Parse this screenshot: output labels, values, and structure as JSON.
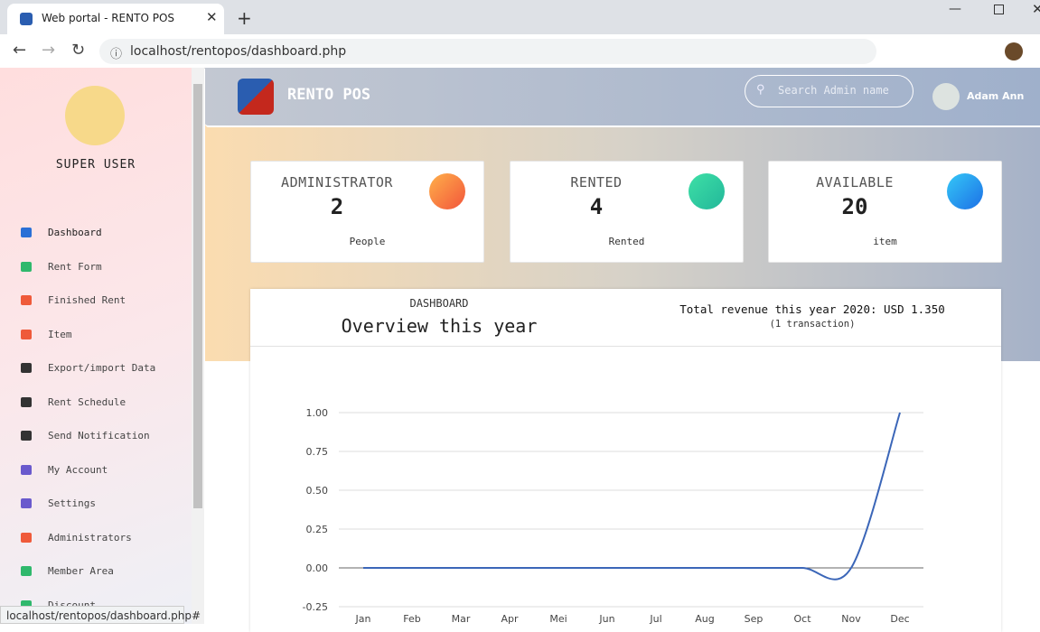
{
  "browser": {
    "tab_title": "Web portal - RENTO POS",
    "url": "localhost/rentopos/dashboard.php",
    "status_url": "localhost/rentopos/dashboard.php#"
  },
  "sidebar": {
    "role": "SUPER USER",
    "menu": [
      "Dashboard",
      "Rent Form",
      "Finished Rent",
      "Item",
      "Export/import Data",
      "Rent Schedule",
      "Send Notification",
      "My Account",
      "Settings",
      "Administrators",
      "Member Area",
      "Discount"
    ]
  },
  "header": {
    "brand": "RENTO POS",
    "search_placeholder": "Search Admin name",
    "user": "Adam Ann"
  },
  "cards": [
    {
      "title": "ADMINISTRATOR",
      "value": "2",
      "unit": "People"
    },
    {
      "title": "RENTED",
      "value": "4",
      "unit": "Rented"
    },
    {
      "title": "AVAILABLE",
      "value": "20",
      "unit": "item"
    }
  ],
  "panel": {
    "subtitle": "DASHBOARD",
    "title": "Overview this year",
    "revenue": "Total revenue this year 2020: USD 1.350",
    "note": "(1 transaction)"
  },
  "chart_data": {
    "type": "line",
    "categories": [
      "Jan",
      "Feb",
      "Mar",
      "Apr",
      "Mei",
      "Jun",
      "Jul",
      "Aug",
      "Sep",
      "Oct",
      "Nov",
      "Dec"
    ],
    "values": [
      0,
      0,
      0,
      0,
      0,
      0,
      0,
      0,
      0,
      0,
      0,
      1
    ],
    "color": "#3b66b8",
    "ylim": [
      -0.25,
      1.0
    ],
    "yticks": [
      {
        "value": -0.25,
        "label": "-0.25"
      },
      {
        "value": 0,
        "label": "0.00"
      },
      {
        "value": 0.25,
        "label": "0.25"
      },
      {
        "value": 0.5,
        "label": "0.50"
      },
      {
        "value": 0.75,
        "label": "0.75"
      },
      {
        "value": 1,
        "label": "1.00"
      }
    ],
    "grid": true
  }
}
